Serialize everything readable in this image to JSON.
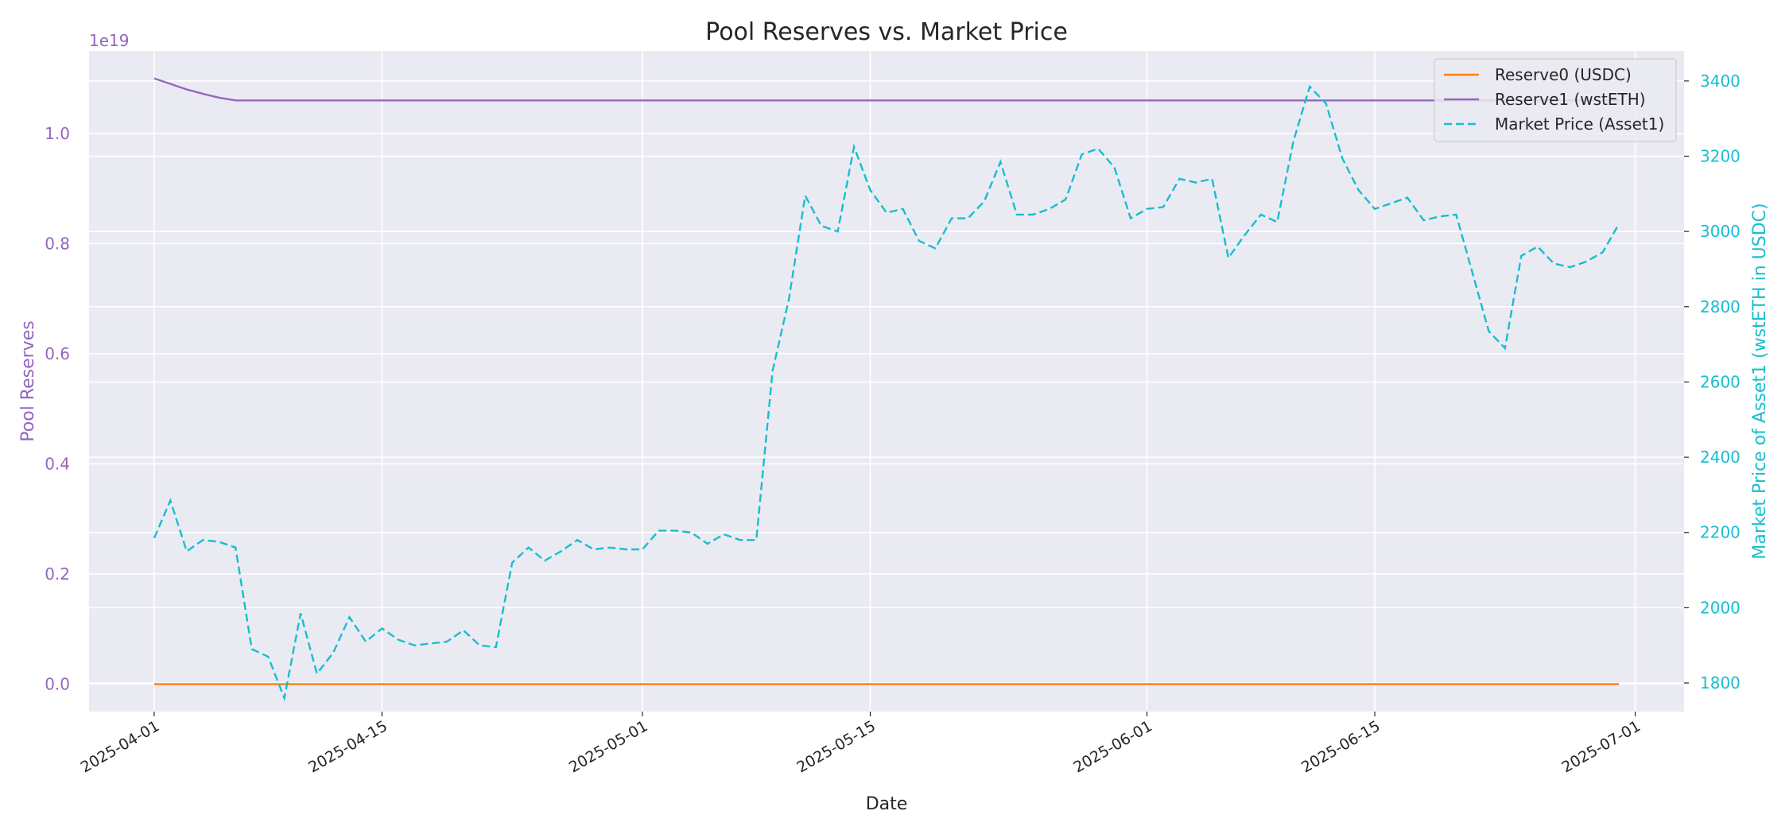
{
  "chart_data": {
    "type": "line",
    "title": "Pool Reserves vs. Market Price",
    "xlabel": "Date",
    "ylabel_left": "Pool Reserves",
    "ylabel_right": "Market Price of Asset1 (wstETH in USDC)",
    "left_offset_text": "1e19",
    "x_range": [
      "2025-03-28",
      "2025-07-04"
    ],
    "ylim_left": [
      -0.05,
      1.15
    ],
    "ylim_right": [
      1724,
      3480
    ],
    "x_ticks": [
      "2025-04-01",
      "2025-04-15",
      "2025-05-01",
      "2025-05-15",
      "2025-06-01",
      "2025-06-15",
      "2025-07-01"
    ],
    "y_ticks_left": [
      "0.0",
      "0.2",
      "0.4",
      "0.6",
      "0.8",
      "1.0"
    ],
    "y_ticks_right": [
      "1800",
      "2000",
      "2200",
      "2400",
      "2600",
      "2800",
      "3000",
      "3200",
      "3400"
    ],
    "grid": true,
    "legend_position": "top-right",
    "colors": {
      "reserve0": "#ff7f0e",
      "reserve1": "#9467bd",
      "market_price": "#17becf",
      "plot_bg": "#eaeaf2",
      "grid": "#ffffff",
      "text": "#262626"
    },
    "series": [
      {
        "name": "Reserve0 (USDC)",
        "axis": "left",
        "style": "solid",
        "x": [
          "2025-04-01",
          "2025-06-30"
        ],
        "values": [
          0.0,
          0.0
        ]
      },
      {
        "name": "Reserve1 (wstETH)",
        "axis": "left",
        "style": "solid",
        "x": [
          "2025-04-01",
          "2025-04-02",
          "2025-04-03",
          "2025-04-04",
          "2025-04-05",
          "2025-04-06",
          "2025-06-30"
        ],
        "values": [
          1.1,
          1.09,
          1.08,
          1.072,
          1.065,
          1.06,
          1.06
        ]
      },
      {
        "name": "Market Price (Asset1)",
        "axis": "right",
        "style": "dashed",
        "x": [
          "2025-04-01",
          "2025-04-02",
          "2025-04-03",
          "2025-04-04",
          "2025-04-05",
          "2025-04-06",
          "2025-04-07",
          "2025-04-08",
          "2025-04-09",
          "2025-04-10",
          "2025-04-11",
          "2025-04-12",
          "2025-04-13",
          "2025-04-14",
          "2025-04-15",
          "2025-04-16",
          "2025-04-17",
          "2025-04-18",
          "2025-04-19",
          "2025-04-20",
          "2025-04-21",
          "2025-04-22",
          "2025-04-23",
          "2025-04-24",
          "2025-04-25",
          "2025-04-26",
          "2025-04-27",
          "2025-04-28",
          "2025-04-29",
          "2025-04-30",
          "2025-05-01",
          "2025-05-02",
          "2025-05-03",
          "2025-05-04",
          "2025-05-05",
          "2025-05-06",
          "2025-05-07",
          "2025-05-08",
          "2025-05-09",
          "2025-05-10",
          "2025-05-11",
          "2025-05-12",
          "2025-05-13",
          "2025-05-14",
          "2025-05-15",
          "2025-05-16",
          "2025-05-17",
          "2025-05-18",
          "2025-05-19",
          "2025-05-20",
          "2025-05-21",
          "2025-05-22",
          "2025-05-23",
          "2025-05-24",
          "2025-05-25",
          "2025-05-26",
          "2025-05-27",
          "2025-05-28",
          "2025-05-29",
          "2025-05-30",
          "2025-05-31",
          "2025-06-01",
          "2025-06-02",
          "2025-06-03",
          "2025-06-04",
          "2025-06-05",
          "2025-06-06",
          "2025-06-07",
          "2025-06-08",
          "2025-06-09",
          "2025-06-10",
          "2025-06-11",
          "2025-06-12",
          "2025-06-13",
          "2025-06-14",
          "2025-06-15",
          "2025-06-16",
          "2025-06-17",
          "2025-06-18",
          "2025-06-19",
          "2025-06-20",
          "2025-06-21",
          "2025-06-22",
          "2025-06-23",
          "2025-06-24",
          "2025-06-25",
          "2025-06-26",
          "2025-06-27",
          "2025-06-28",
          "2025-06-29",
          "2025-06-30"
        ],
        "values": [
          2185,
          2285,
          2150,
          2180,
          2175,
          2160,
          1890,
          1870,
          1760,
          1985,
          1825,
          1880,
          1975,
          1910,
          1945,
          1915,
          1900,
          1905,
          1910,
          1940,
          1900,
          1895,
          2120,
          2160,
          2125,
          2150,
          2180,
          2155,
          2160,
          2155,
          2155,
          2205,
          2205,
          2200,
          2170,
          2195,
          2180,
          2180,
          2630,
          2820,
          3095,
          3015,
          3000,
          3225,
          3110,
          3050,
          3060,
          2975,
          2955,
          3035,
          3035,
          3080,
          3185,
          3045,
          3045,
          3060,
          3085,
          3205,
          3220,
          3170,
          3035,
          3060,
          3065,
          3140,
          3130,
          3140,
          2930,
          2990,
          3045,
          3025,
          3240,
          3385,
          3340,
          3195,
          3110,
          3060,
          3075,
          3090,
          3030,
          3040,
          3045,
          2890,
          2735,
          2690,
          2935,
          2960,
          2915,
          2905,
          2920,
          2945,
          3020
        ]
      }
    ]
  }
}
